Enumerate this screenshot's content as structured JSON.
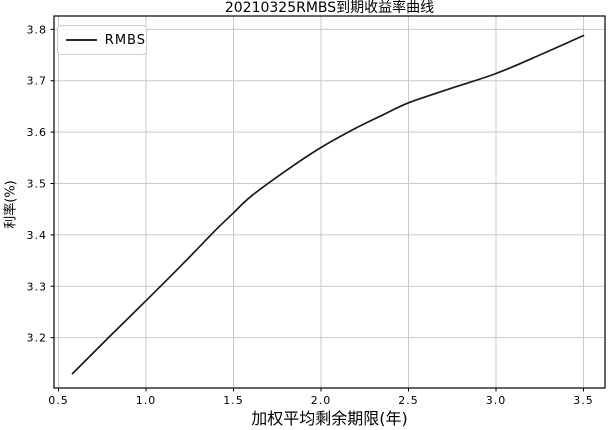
{
  "title": "20210325RMBS到期收益率曲线",
  "legend": {
    "label": "RMBS"
  },
  "axes": {
    "xlabel": "加权平均剩余期限(年)",
    "ylabel": "利率(%)"
  },
  "colors": {
    "line": "#1a1a1a",
    "grid": "#c9c9c9",
    "spine": "#000000",
    "tick": "#000000",
    "legend_border": "#cccccc",
    "background": "#ffffff"
  },
  "chart_data": {
    "type": "line",
    "title": "20210325RMBS到期收益率曲线",
    "xlabel": "加权平均剩余期限(年)",
    "ylabel": "利率(%)",
    "grid": true,
    "legend_position": "upper-left",
    "xticks": [
      0.5,
      1.0,
      1.5,
      2.0,
      2.5,
      3.0,
      3.5
    ],
    "yticks": [
      3.2,
      3.3,
      3.4,
      3.5,
      3.6,
      3.7,
      3.8
    ],
    "xlim": [
      0.474,
      3.623
    ],
    "ylim": [
      3.102,
      3.826
    ],
    "series": [
      {
        "name": "RMBS",
        "color": "#1a1a1a",
        "points": [
          [
            0.58,
            3.13
          ],
          [
            0.8,
            3.205
          ],
          [
            1.0,
            3.272
          ],
          [
            1.2,
            3.34
          ],
          [
            1.4,
            3.41
          ],
          [
            1.5,
            3.443
          ],
          [
            1.6,
            3.475
          ],
          [
            1.8,
            3.525
          ],
          [
            2.0,
            3.57
          ],
          [
            2.2,
            3.608
          ],
          [
            2.35,
            3.633
          ],
          [
            2.5,
            3.657
          ],
          [
            2.75,
            3.686
          ],
          [
            3.0,
            3.714
          ],
          [
            3.25,
            3.75
          ],
          [
            3.5,
            3.788
          ]
        ]
      }
    ]
  }
}
